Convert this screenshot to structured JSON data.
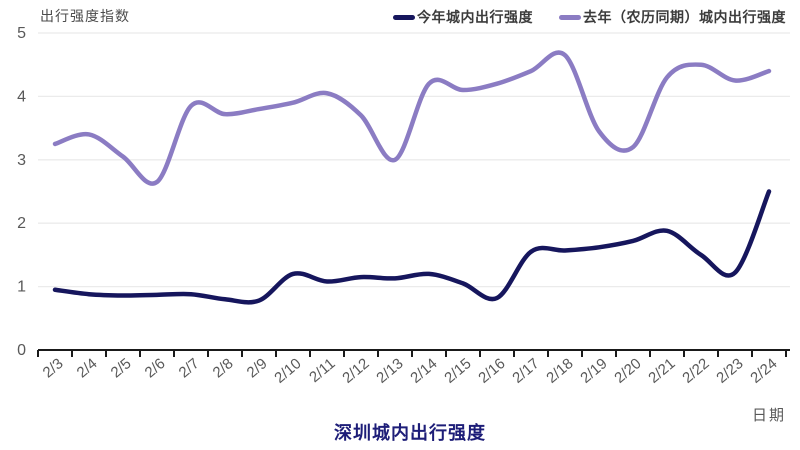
{
  "header": {
    "y_axis_title": "出行强度指数"
  },
  "legend": [
    {
      "label": "今年城内出行强度",
      "color": "#16165d"
    },
    {
      "label": "去年（农历同期）城内出行强度",
      "color": "#8b7cc3"
    }
  ],
  "footer": {
    "x_axis_title": "日期",
    "chart_title": "深圳城内出行强度"
  },
  "chart_data": {
    "type": "line",
    "title": "深圳城内出行强度",
    "xlabel": "日期",
    "ylabel": "出行强度指数",
    "categories": [
      "2/3",
      "2/4",
      "2/5",
      "2/6",
      "2/7",
      "2/8",
      "2/9",
      "2/10",
      "2/11",
      "2/12",
      "2/13",
      "2/14",
      "2/15",
      "2/16",
      "2/17",
      "2/18",
      "2/19",
      "2/20",
      "2/21",
      "2/22",
      "2/23",
      "2/24"
    ],
    "series": [
      {
        "name": "今年城内出行强度",
        "color": "#16165d",
        "values": [
          0.95,
          0.88,
          0.86,
          0.87,
          0.88,
          0.8,
          0.78,
          1.2,
          1.08,
          1.15,
          1.13,
          1.2,
          1.05,
          0.82,
          1.55,
          1.57,
          1.62,
          1.72,
          1.88,
          1.5,
          1.22,
          2.5
        ]
      },
      {
        "name": "去年（农历同期）城内出行强度",
        "color": "#8b7cc3",
        "values": [
          3.25,
          3.4,
          3.05,
          2.65,
          3.85,
          3.72,
          3.8,
          3.9,
          4.05,
          3.7,
          3.0,
          4.2,
          4.1,
          4.2,
          4.4,
          4.65,
          3.45,
          3.2,
          4.3,
          4.5,
          4.25,
          4.4
        ]
      }
    ],
    "ylim": [
      0,
      5
    ],
    "yticks": [
      0,
      1,
      2,
      3,
      4,
      5
    ],
    "grid": true,
    "legend_position": "top-right",
    "colors": {
      "grid_line": "#ebebeb",
      "axis_line": "#1a1a1a",
      "tick_label": "#595959"
    }
  }
}
